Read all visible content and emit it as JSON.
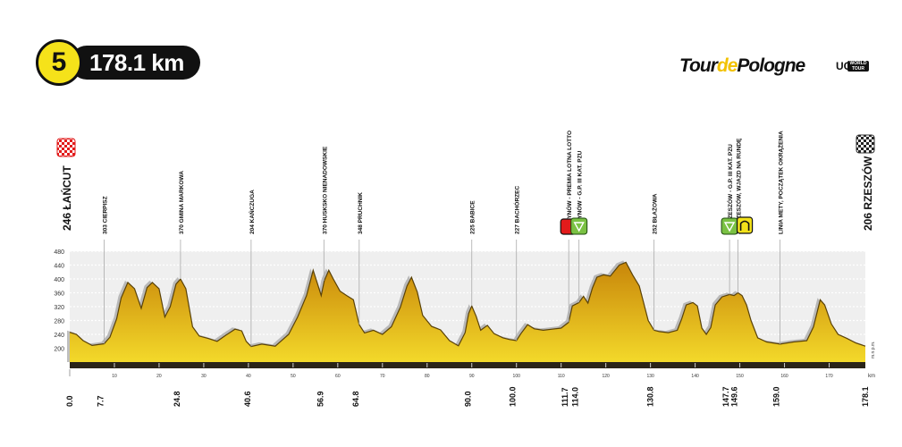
{
  "stage": {
    "number": "5",
    "distance": "178.1 km"
  },
  "logo": {
    "part1": "Tour",
    "part2": "de",
    "part3": "Pologne",
    "uci": "UCI",
    "world_tour": "WORLD TOUR"
  },
  "colors": {
    "fill_top": "#c8860a",
    "fill_bottom": "#f3d92a",
    "ground": "#2a2418",
    "sprint": "#e21b1b",
    "kom": "#7ac143",
    "bonus": "#f2e11a"
  },
  "chart_data": {
    "type": "area",
    "start": {
      "label": "246 ŁAŃCUT",
      "km": 0.0
    },
    "finish": {
      "label": "206 RZESZÓW",
      "km": 178.1
    },
    "xlabel": "km",
    "ylabel": "m.n.p.m.",
    "xlim": [
      0,
      178.1
    ],
    "ylim": [
      160,
      480
    ],
    "yticks": [
      200,
      240,
      280,
      320,
      360,
      400,
      440,
      480
    ],
    "xticks": [
      10,
      20,
      30,
      40,
      50,
      60,
      70,
      80,
      90,
      100,
      110,
      120,
      130,
      140,
      150,
      160,
      170
    ],
    "profile": [
      [
        0,
        246
      ],
      [
        1.5,
        240
      ],
      [
        3,
        222
      ],
      [
        5,
        208
      ],
      [
        7.7,
        213
      ],
      [
        9,
        232
      ],
      [
        10.5,
        285
      ],
      [
        11.5,
        345
      ],
      [
        13,
        390
      ],
      [
        14.5,
        372
      ],
      [
        16,
        315
      ],
      [
        17.3,
        375
      ],
      [
        18.5,
        390
      ],
      [
        20,
        372
      ],
      [
        21.3,
        290
      ],
      [
        22.5,
        320
      ],
      [
        23.8,
        385
      ],
      [
        24.8,
        400
      ],
      [
        26,
        372
      ],
      [
        27.5,
        262
      ],
      [
        29,
        235
      ],
      [
        31,
        228
      ],
      [
        33,
        220
      ],
      [
        35,
        238
      ],
      [
        37,
        255
      ],
      [
        38.5,
        250
      ],
      [
        39.5,
        220
      ],
      [
        40.6,
        205
      ],
      [
        43,
        212
      ],
      [
        46,
        206
      ],
      [
        49,
        240
      ],
      [
        51,
        290
      ],
      [
        53,
        352
      ],
      [
        54.5,
        425
      ],
      [
        55.5,
        385
      ],
      [
        56.3,
        352
      ],
      [
        57,
        395
      ],
      [
        58,
        425
      ],
      [
        59,
        400
      ],
      [
        60.5,
        365
      ],
      [
        62,
        352
      ],
      [
        63.5,
        340
      ],
      [
        64.8,
        268
      ],
      [
        66,
        244
      ],
      [
        68,
        252
      ],
      [
        70,
        240
      ],
      [
        72,
        262
      ],
      [
        74,
        318
      ],
      [
        75.5,
        380
      ],
      [
        76.5,
        405
      ],
      [
        77.8,
        362
      ],
      [
        79,
        295
      ],
      [
        81,
        263
      ],
      [
        83,
        253
      ],
      [
        85,
        222
      ],
      [
        87,
        207
      ],
      [
        88.5,
        245
      ],
      [
        89.3,
        300
      ],
      [
        90,
        322
      ],
      [
        91,
        292
      ],
      [
        92,
        252
      ],
      [
        93.5,
        266
      ],
      [
        95,
        242
      ],
      [
        97,
        230
      ],
      [
        98.5,
        225
      ],
      [
        100,
        222
      ],
      [
        101,
        242
      ],
      [
        102.5,
        268
      ],
      [
        104,
        256
      ],
      [
        106,
        252
      ],
      [
        108,
        255
      ],
      [
        110,
        258
      ],
      [
        111.7,
        275
      ],
      [
        112.5,
        322
      ],
      [
        114,
        332
      ],
      [
        115,
        350
      ],
      [
        116,
        330
      ],
      [
        117,
        374
      ],
      [
        118,
        405
      ],
      [
        119.5,
        412
      ],
      [
        121,
        408
      ],
      [
        123,
        440
      ],
      [
        124.5,
        448
      ],
      [
        126,
        412
      ],
      [
        127.5,
        380
      ],
      [
        128.5,
        330
      ],
      [
        129.5,
        280
      ],
      [
        130.8,
        252
      ],
      [
        132,
        248
      ],
      [
        134,
        245
      ],
      [
        136,
        252
      ],
      [
        137,
        285
      ],
      [
        138,
        325
      ],
      [
        139.5,
        332
      ],
      [
        140.5,
        322
      ],
      [
        141.5,
        258
      ],
      [
        142.5,
        240
      ],
      [
        143.5,
        260
      ],
      [
        144.5,
        325
      ],
      [
        146,
        348
      ],
      [
        147.7,
        355
      ],
      [
        148.7,
        352
      ],
      [
        149.6,
        360
      ],
      [
        150.5,
        352
      ],
      [
        151.5,
        325
      ],
      [
        152.5,
        280
      ],
      [
        154,
        230
      ],
      [
        156,
        218
      ],
      [
        159,
        212
      ],
      [
        162,
        218
      ],
      [
        165,
        222
      ],
      [
        166.5,
        262
      ],
      [
        168,
        340
      ],
      [
        169,
        325
      ],
      [
        170.5,
        270
      ],
      [
        172,
        240
      ],
      [
        174,
        228
      ],
      [
        176,
        215
      ],
      [
        178.1,
        206
      ]
    ],
    "points": [
      {
        "km": "7.7",
        "label": "303 CIERPISZ",
        "type": "town"
      },
      {
        "km": "24.8",
        "label": "370 GMINA MARKOWA",
        "type": "town"
      },
      {
        "km": "40.6",
        "label": "204 KAŃCZUGA",
        "type": "town"
      },
      {
        "km": "56.9",
        "label": "370 HUSKSKO NIENADOWSKIE",
        "type": "town"
      },
      {
        "km": "64.8",
        "label": "348 PRUCHNIK",
        "type": "town"
      },
      {
        "km": "90.0",
        "label": "225 BABICE",
        "type": "town"
      },
      {
        "km": "100.0",
        "label": "227 BACHÓRZEC",
        "type": "town"
      },
      {
        "km": "111.7",
        "label": "254 DYNÓW - PREMIA LOTNA LOTTO",
        "type": "sprint"
      },
      {
        "km": "114.0",
        "label": "325 DYNÓW - G.P. III KAT. PZU",
        "type": "kom"
      },
      {
        "km": "130.8",
        "label": "252 BŁAŻOWA",
        "type": "town"
      },
      {
        "km": "147.7",
        "label": "354 RZESZÓW - G.P. III KAT. PZU",
        "type": "kom"
      },
      {
        "km": "149.6",
        "label": "346 RZESZÓW, WJAZD NA RUNDĘ",
        "type": "bonus"
      },
      {
        "km": "159.0",
        "label": "LINIA METY, POCZĄTEK OKRĄŻENIA",
        "type": "town"
      },
      {
        "km": "178.1",
        "label": "",
        "type": "finish"
      }
    ]
  }
}
